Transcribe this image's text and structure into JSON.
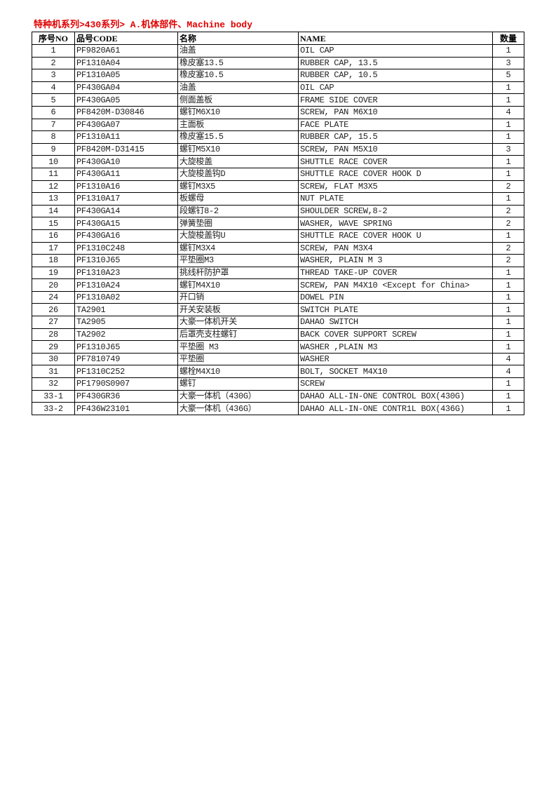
{
  "title": "特种机系列>430系列> A.机体部件、Machine body",
  "headers": {
    "no": "序号NO",
    "code": "品号CODE",
    "cn": "名称",
    "name": "NAME",
    "qty": "数量"
  },
  "rows": [
    {
      "no": "1",
      "code": "PF9820A61",
      "cn": "油盖",
      "name": "OIL CAP",
      "qty": "1"
    },
    {
      "no": "2",
      "code": "PF1310A04",
      "cn": "橡皮塞13.5",
      "name": "RUBBER CAP, 13.5",
      "qty": "3"
    },
    {
      "no": "3",
      "code": "PF1310A05",
      "cn": "橡皮塞10.5",
      "name": "RUBBER CAP, 10.5",
      "qty": "5"
    },
    {
      "no": "4",
      "code": "PF430GA04",
      "cn": "油盖",
      "name": "OIL CAP",
      "qty": "1"
    },
    {
      "no": "5",
      "code": "PF430GA05",
      "cn": "侧面盖板",
      "name": "FRAME SIDE COVER",
      "qty": "1"
    },
    {
      "no": "6",
      "code": "PF8420M-D30846",
      "cn": "螺钉M6X10",
      "name": "SCREW, PAN M6X10",
      "qty": "4"
    },
    {
      "no": "7",
      "code": "PF430GA07",
      "cn": "主面板",
      "name": "FACE PLATE",
      "qty": "1"
    },
    {
      "no": "8",
      "code": "PF1310A11",
      "cn": "橡皮塞15.5",
      "name": "RUBBER CAP, 15.5",
      "qty": "1"
    },
    {
      "no": "9",
      "code": "PF8420M-D31415",
      "cn": "螺钉M5X10",
      "name": "SCREW, PAN M5X10",
      "qty": "3"
    },
    {
      "no": "10",
      "code": "PF430GA10",
      "cn": "大旋梭盖",
      "name": "SHUTTLE RACE COVER",
      "qty": "1"
    },
    {
      "no": "11",
      "code": "PF430GA11",
      "cn": "大旋梭盖钩D",
      "name": "SHUTTLE RACE COVER HOOK D",
      "qty": "1"
    },
    {
      "no": "12",
      "code": "PF1310A16",
      "cn": "螺钉M3X5",
      "name": "SCREW, FLAT M3X5",
      "qty": "2"
    },
    {
      "no": "13",
      "code": "PF1310A17",
      "cn": "板螺母",
      "name": "NUT PLATE",
      "qty": "1"
    },
    {
      "no": "14",
      "code": "PF430GA14",
      "cn": "段螺钉8-2",
      "name": "SHOULDER SCREW,8-2",
      "qty": "2"
    },
    {
      "no": "15",
      "code": "PF430GA15",
      "cn": "弹簧垫圈",
      "name": "WASHER, WAVE SPRING",
      "qty": "2"
    },
    {
      "no": "16",
      "code": "PF430GA16",
      "cn": "大旋梭盖钩U",
      "name": "SHUTTLE RACE COVER HOOK U",
      "qty": "1"
    },
    {
      "no": "17",
      "code": "PF1310C248",
      "cn": "螺钉M3X4",
      "name": "SCREW, PAN M3X4",
      "qty": "2"
    },
    {
      "no": "18",
      "code": "PF1310J65",
      "cn": "平垫圈M3",
      "name": "WASHER, PLAIN M 3",
      "qty": "2"
    },
    {
      "no": "19",
      "code": "PF1310A23",
      "cn": "挑线杆防护罩",
      "name": "THREAD TAKE-UP COVER",
      "qty": "1"
    },
    {
      "no": "20",
      "code": "PF1310A24",
      "cn": "螺钉M4X10",
      "name": "SCREW, PAN M4X10 <Except for China>",
      "qty": "1"
    },
    {
      "no": "24",
      "code": "PF1310A02",
      "cn": "开口销",
      "name": "DOWEL PIN",
      "qty": "1"
    },
    {
      "no": "26",
      "code": "TA2901",
      "cn": "开关安装板",
      "name": "SWITCH PLATE",
      "qty": "1"
    },
    {
      "no": "27",
      "code": "TA2905",
      "cn": "大豪一体机开关",
      "name": "DAHAO SWITCH",
      "qty": "1"
    },
    {
      "no": "28",
      "code": "TA2902",
      "cn": "后罩壳支柱螺钉",
      "name": "BACK COVER SUPPORT SCREW",
      "qty": "1"
    },
    {
      "no": "29",
      "code": "PF1310J65",
      "cn": "平垫圈 M3",
      "name": "WASHER ,PLAIN M3",
      "qty": "1"
    },
    {
      "no": "30",
      "code": "PF7810749",
      "cn": "平垫圈",
      "name": "WASHER",
      "qty": "4"
    },
    {
      "no": "31",
      "code": "PF1310C252",
      "cn": "螺栓M4X10",
      "name": "BOLT, SOCKET M4X10",
      "qty": "4"
    },
    {
      "no": "32",
      "code": "PF1790S0907",
      "cn": "螺钉",
      "name": "SCREW",
      "qty": "1"
    },
    {
      "no": "33-1",
      "code": "PF430GR36",
      "cn": "大豪一体机（430G）",
      "name": "DAHAO ALL-IN-ONE CONTROL BOX(430G)",
      "qty": "1"
    },
    {
      "no": "33-2",
      "code": "PF436W23101",
      "cn": "大豪一体机（436G）",
      "name": "DAHAO ALL-IN-ONE CONTR1L BOX(436G)",
      "qty": "1"
    }
  ]
}
